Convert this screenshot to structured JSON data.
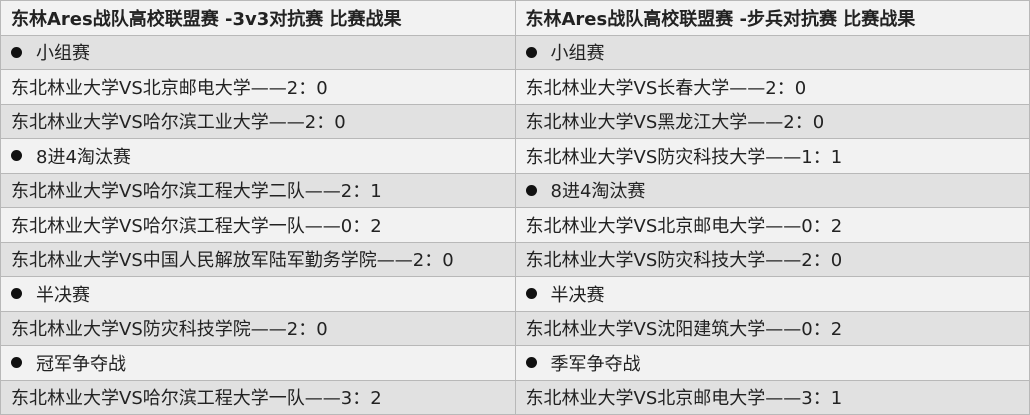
{
  "columns": [
    {
      "title": "东林Ares战队高校联盟赛 -3v3对抗赛 比赛战果",
      "rows": [
        {
          "type": "section",
          "text": "小组赛"
        },
        {
          "type": "match",
          "text": "东北林业大学VS北京邮电大学——2：0"
        },
        {
          "type": "match",
          "text": "东北林业大学VS哈尔滨工业大学——2：0"
        },
        {
          "type": "section",
          "text": "8进4淘汰赛"
        },
        {
          "type": "match",
          "text": "东北林业大学VS哈尔滨工程大学二队——2：1"
        },
        {
          "type": "match",
          "text": "东北林业大学VS哈尔滨工程大学一队——0：2"
        },
        {
          "type": "match",
          "text": "东北林业大学VS中国人民解放军陆军勤务学院——2：0"
        },
        {
          "type": "section",
          "text": "半决赛"
        },
        {
          "type": "match",
          "text": "东北林业大学VS防灾科技学院——2：0"
        },
        {
          "type": "section",
          "text": "冠军争夺战"
        },
        {
          "type": "match",
          "text": "东北林业大学VS哈尔滨工程大学一队——3：2"
        }
      ]
    },
    {
      "title": "东林Ares战队高校联盟赛 -步兵对抗赛 比赛战果",
      "rows": [
        {
          "type": "section",
          "text": "小组赛"
        },
        {
          "type": "match",
          "text": "东北林业大学VS长春大学——2：0"
        },
        {
          "type": "match",
          "text": "东北林业大学VS黑龙江大学——2：0"
        },
        {
          "type": "match",
          "text": "东北林业大学VS防灾科技大学——1：1"
        },
        {
          "type": "section",
          "text": "8进4淘汰赛"
        },
        {
          "type": "match",
          "text": "东北林业大学VS北京邮电大学——0：2"
        },
        {
          "type": "match",
          "text": "东北林业大学VS防灾科技大学——2：0"
        },
        {
          "type": "section",
          "text": "半决赛"
        },
        {
          "type": "match",
          "text": "东北林业大学VS沈阳建筑大学——0：2"
        },
        {
          "type": "section",
          "text": "季军争夺战"
        },
        {
          "type": "match",
          "text": "东北林业大学VS北京邮电大学——3：1"
        }
      ]
    }
  ]
}
